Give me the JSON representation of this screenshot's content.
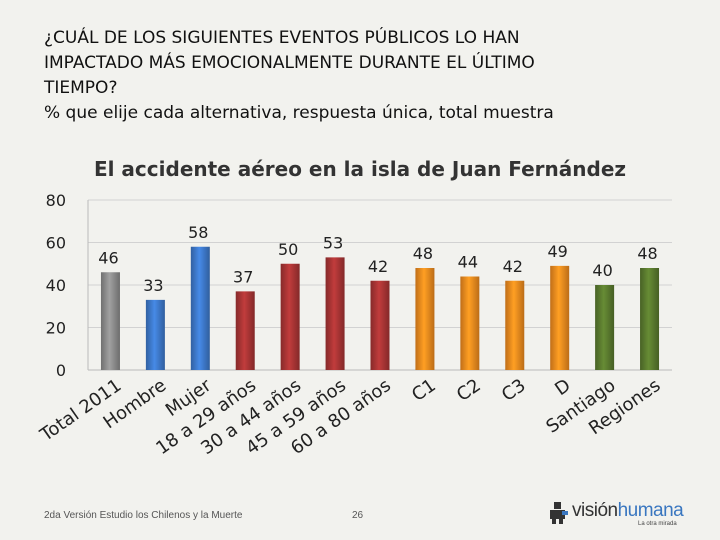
{
  "heading": {
    "line1": "¿CUÁL DE LOS SIGUIENTES EVENTOS PÚBLICOS LO HAN",
    "line2": "IMPACTADO MÁS EMOCIONALMENTE DURANTE EL ÚLTIMO",
    "line3": "TIEMPO?",
    "line4": "% que elije cada alternativa, respuesta única, total muestra"
  },
  "chart_data": {
    "type": "bar",
    "title": "El accidente aéreo en la isla de Juan Fernández",
    "categories": [
      "Total 2011",
      "Hombre",
      "Mujer",
      "18 a 29 años",
      "30 a 44 años",
      "45 a 59 años",
      "60 a 80 años",
      "C1",
      "C2",
      "C3",
      "D",
      "Santiago",
      "Regiones"
    ],
    "values": [
      46,
      33,
      58,
      37,
      50,
      53,
      42,
      48,
      44,
      42,
      49,
      40,
      48
    ],
    "colors": [
      "#8c8c8c",
      "#3d78c9",
      "#3d78c9",
      "#a83434",
      "#a83434",
      "#a83434",
      "#a83434",
      "#f08a1e",
      "#f08a1e",
      "#f08a1e",
      "#f08a1e",
      "#5a7a2e",
      "#5a7a2e"
    ],
    "ylim": [
      0,
      80
    ],
    "yticks": [
      0,
      20,
      40,
      60,
      80
    ],
    "xlabel": "",
    "ylabel": "",
    "grid": true
  },
  "footer": {
    "source": "2da Versión Estudio los Chilenos y la Muerte",
    "page": "26"
  },
  "logo": {
    "text_a": "visión",
    "text_b": "humana",
    "tagline": "La otra mirada"
  }
}
